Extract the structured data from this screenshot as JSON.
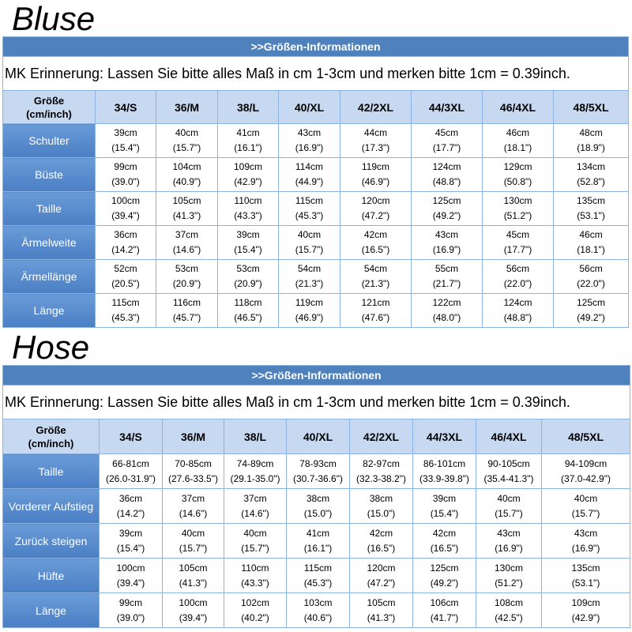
{
  "sections": [
    {
      "title": "Bluse",
      "banner": ">>Größen-Informationen",
      "note": "MK Erinnerung: Lassen Sie bitte alles Maß in cm 1-3cm und merken bitte 1cm = 0.39inch.",
      "header": {
        "first": [
          "Größe",
          "(cm/inch)"
        ],
        "sizes": [
          "34/S",
          "36/M",
          "38/L",
          "40/XL",
          "42/2XL",
          "44/3XL",
          "46/4XL",
          "48/5XL"
        ]
      },
      "rows": [
        {
          "label": "Schulter",
          "cells": [
            [
              "39cm",
              "(15.4\")"
            ],
            [
              "40cm",
              "(15.7\")"
            ],
            [
              "41cm",
              "(16.1\")"
            ],
            [
              "43cm",
              "(16.9\")"
            ],
            [
              "44cm",
              "(17.3\")"
            ],
            [
              "45cm",
              "(17.7\")"
            ],
            [
              "46cm",
              "(18.1\")"
            ],
            [
              "48cm",
              "(18.9\")"
            ]
          ]
        },
        {
          "label": "Büste",
          "cells": [
            [
              "99cm",
              "(39.0\")"
            ],
            [
              "104cm",
              "(40.9\")"
            ],
            [
              "109cm",
              "(42.9\")"
            ],
            [
              "114cm",
              "(44.9\")"
            ],
            [
              "119cm",
              "(46.9\")"
            ],
            [
              "124cm",
              "(48.8\")"
            ],
            [
              "129cm",
              "(50.8\")"
            ],
            [
              "134cm",
              "(52.8\")"
            ]
          ]
        },
        {
          "label": "Taille",
          "cells": [
            [
              "100cm",
              "(39.4\")"
            ],
            [
              "105cm",
              "(41.3\")"
            ],
            [
              "110cm",
              "(43.3\")"
            ],
            [
              "115cm",
              "(45.3\")"
            ],
            [
              "120cm",
              "(47.2\")"
            ],
            [
              "125cm",
              "(49.2\")"
            ],
            [
              "130cm",
              "(51.2\")"
            ],
            [
              "135cm",
              "(53.1\")"
            ]
          ]
        },
        {
          "label": "Ärmelweite",
          "cells": [
            [
              "36cm",
              "(14.2\")"
            ],
            [
              "37cm",
              "(14.6\")"
            ],
            [
              "39cm",
              "(15.4\")"
            ],
            [
              "40cm",
              "(15.7\")"
            ],
            [
              "42cm",
              "(16.5\")"
            ],
            [
              "43cm",
              "(16.9\")"
            ],
            [
              "45cm",
              "(17.7\")"
            ],
            [
              "46cm",
              "(18.1\")"
            ]
          ]
        },
        {
          "label": "Ärmellänge",
          "cells": [
            [
              "52cm",
              "(20.5\")"
            ],
            [
              "53cm",
              "(20.9\")"
            ],
            [
              "53cm",
              "(20.9\")"
            ],
            [
              "54cm",
              "(21.3\")"
            ],
            [
              "54cm",
              "(21.3\")"
            ],
            [
              "55cm",
              "(21.7\")"
            ],
            [
              "56cm",
              "(22.0\")"
            ],
            [
              "56cm",
              "(22.0\")"
            ]
          ]
        },
        {
          "label": "Länge",
          "cells": [
            [
              "115cm",
              "(45.3\")"
            ],
            [
              "116cm",
              "(45.7\")"
            ],
            [
              "118cm",
              "(46.5\")"
            ],
            [
              "119cm",
              "(46.9\")"
            ],
            [
              "121cm",
              "(47.6\")"
            ],
            [
              "122cm",
              "(48.0\")"
            ],
            [
              "124cm",
              "(48.8\")"
            ],
            [
              "125cm",
              "(49.2\")"
            ]
          ]
        }
      ]
    },
    {
      "title": "Hose",
      "banner": ">>Größen-Informationen",
      "note": "MK Erinnerung: Lassen Sie bitte alles Maß in cm 1-3cm und merken bitte 1cm = 0.39inch.",
      "header": {
        "first": [
          "Größe",
          "(cm/inch)"
        ],
        "sizes": [
          "34/S",
          "36/M",
          "38/L",
          "40/XL",
          "42/2XL",
          "44/3XL",
          "46/4XL",
          "48/5XL"
        ]
      },
      "rows": [
        {
          "label": "Taille",
          "cells": [
            [
              "66-81cm",
              "(26.0-31.9\")"
            ],
            [
              "70-85cm",
              "(27.6-33.5\")"
            ],
            [
              "74-89cm",
              "(29.1-35.0\")"
            ],
            [
              "78-93cm",
              "(30.7-36.6\")"
            ],
            [
              "82-97cm",
              "(32.3-38.2\")"
            ],
            [
              "86-101cm",
              "(33.9-39.8\")"
            ],
            [
              "90-105cm",
              "(35.4-41.3\")"
            ],
            [
              "94-109cm",
              "(37.0-42.9\")"
            ]
          ]
        },
        {
          "label": "Vorderer Aufstieg",
          "cells": [
            [
              "36cm",
              "(14.2\")"
            ],
            [
              "37cm",
              "(14.6\")"
            ],
            [
              "37cm",
              "(14.6\")"
            ],
            [
              "38cm",
              "(15.0\")"
            ],
            [
              "38cm",
              "(15.0\")"
            ],
            [
              "39cm",
              "(15.4\")"
            ],
            [
              "40cm",
              "(15.7\")"
            ],
            [
              "40cm",
              "(15.7\")"
            ]
          ]
        },
        {
          "label": "Zurück steigen",
          "cells": [
            [
              "39cm",
              "(15.4\")"
            ],
            [
              "40cm",
              "(15.7\")"
            ],
            [
              "40cm",
              "(15.7\")"
            ],
            [
              "41cm",
              "(16.1\")"
            ],
            [
              "42cm",
              "(16.5\")"
            ],
            [
              "42cm",
              "(16.5\")"
            ],
            [
              "43cm",
              "(16.9\")"
            ],
            [
              "43cm",
              "(16.9\")"
            ]
          ]
        },
        {
          "label": "Hüfte",
          "cells": [
            [
              "100cm",
              "(39.4\")"
            ],
            [
              "105cm",
              "(41.3\")"
            ],
            [
              "110cm",
              "(43.3\")"
            ],
            [
              "115cm",
              "(45.3\")"
            ],
            [
              "120cm",
              "(47.2\")"
            ],
            [
              "125cm",
              "(49.2\")"
            ],
            [
              "130cm",
              "(51.2\")"
            ],
            [
              "135cm",
              "(53.1\")"
            ]
          ]
        },
        {
          "label": "Länge",
          "cells": [
            [
              "99cm",
              "(39.0\")"
            ],
            [
              "100cm",
              "(39.4\")"
            ],
            [
              "102cm",
              "(40.2\")"
            ],
            [
              "103cm",
              "(40.6\")"
            ],
            [
              "105cm",
              "(41.3\")"
            ],
            [
              "106cm",
              "(41.7\")"
            ],
            [
              "108cm",
              "(42.5\")"
            ],
            [
              "109cm",
              "(42.9\")"
            ]
          ]
        }
      ]
    }
  ]
}
